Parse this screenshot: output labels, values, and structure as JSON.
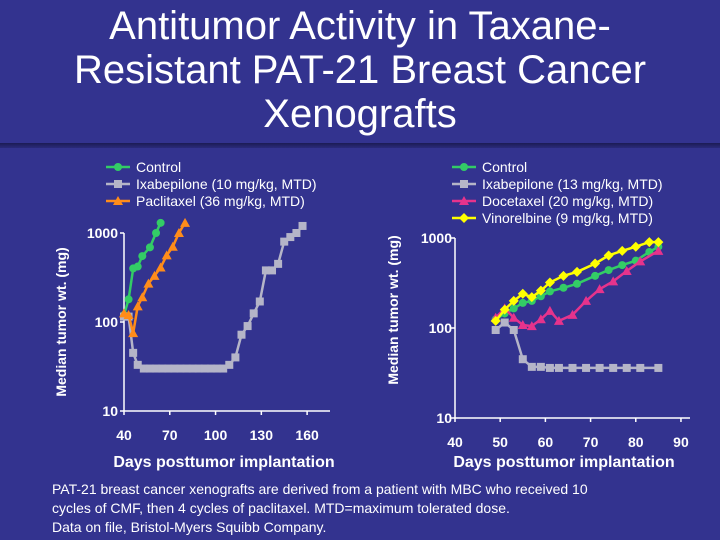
{
  "title": "Antitumor Activity in Taxane-Resistant PAT-21 Breast Cancer Xenografts",
  "title_lines": [
    "Antitumor Activity in Taxane-",
    "Resistant PAT-21 Breast Cancer",
    "Xenografts"
  ],
  "footnote": {
    "line1": "PAT-21 breast cancer xenografts are derived from a patient with MBC who received 10",
    "line2": "cycles of CMF, then 4 cycles of paclitaxel.  MTD=maximum tolerated dose.",
    "line3": "Data on file, Bristol-Myers Squibb Company."
  },
  "chart_data": [
    {
      "type": "line",
      "xlabel": "Days posttumor implantation",
      "ylabel": "Median tumor wt. (mg)",
      "yscale": "log",
      "xlim": [
        40,
        175
      ],
      "ylim": [
        10,
        1000
      ],
      "xticks": [
        40,
        70,
        100,
        130,
        160
      ],
      "xtick_labels": [
        "40",
        "70",
        "100",
        "130",
        "160"
      ],
      "yticks": [
        10,
        100,
        1000
      ],
      "ytick_labels": [
        "10",
        "100",
        "1000"
      ],
      "legend_position": "top",
      "series": [
        {
          "name": "Control",
          "color": "#33cc66",
          "marker": "circle",
          "x": [
            40,
            43,
            46,
            49,
            52,
            57,
            61,
            64
          ],
          "y": [
            120,
            180,
            400,
            420,
            550,
            690,
            1000,
            1300
          ]
        },
        {
          "name": "Ixabepilone (10 mg/kg, MTD)",
          "color": "#b5b5c8",
          "marker": "square",
          "x": [
            40,
            43,
            46,
            49,
            53,
            57,
            61,
            65,
            69,
            73,
            77,
            81,
            85,
            89,
            93,
            97,
            101,
            105,
            109,
            113,
            117,
            121,
            125,
            129,
            133,
            137,
            141,
            145,
            149,
            153,
            157
          ],
          "y": [
            115,
            115,
            45,
            33,
            30,
            30,
            30,
            30,
            30,
            30,
            30,
            30,
            30,
            30,
            30,
            30,
            30,
            30,
            33,
            40,
            72,
            90,
            125,
            170,
            380,
            380,
            450,
            800,
            900,
            1000,
            1200
          ]
        },
        {
          "name": "Paclitaxel (36 mg/kg, MTD)",
          "color": "#ff8c1a",
          "marker": "triangle",
          "x": [
            40,
            43,
            46,
            49,
            52,
            56,
            60,
            64,
            68,
            72,
            76,
            80
          ],
          "y": [
            125,
            120,
            75,
            150,
            190,
            270,
            330,
            410,
            560,
            700,
            1000,
            1300
          ]
        }
      ]
    },
    {
      "type": "line",
      "xlabel": "Days posttumor implantation",
      "ylabel": "Median tumor wt. (mg)",
      "yscale": "log",
      "xlim": [
        40,
        92
      ],
      "ylim": [
        10,
        1000
      ],
      "xticks": [
        40,
        50,
        60,
        70,
        80,
        90
      ],
      "xtick_labels": [
        "40",
        "50",
        "60",
        "70",
        "80",
        "90"
      ],
      "yticks": [
        10,
        100,
        1000
      ],
      "ytick_labels": [
        "10",
        "100",
        "1000"
      ],
      "legend_position": "top-right",
      "series": [
        {
          "name": "Control",
          "color": "#33cc66",
          "marker": "circle",
          "x": [
            49,
            51,
            53,
            55,
            57,
            59,
            61,
            64,
            67,
            71,
            74,
            77,
            80,
            83,
            85
          ],
          "y": [
            125,
            145,
            165,
            190,
            200,
            225,
            255,
            280,
            310,
            380,
            440,
            500,
            560,
            700,
            800
          ]
        },
        {
          "name": "Ixabepilone (13 mg/kg, MTD)",
          "color": "#b5b5c8",
          "marker": "square",
          "x": [
            49,
            51,
            53,
            55,
            57,
            59,
            61,
            63,
            66,
            69,
            72,
            75,
            78,
            81,
            85
          ],
          "y": [
            95,
            115,
            95,
            45,
            37,
            37,
            36,
            36,
            36,
            36,
            36,
            36,
            36,
            36,
            36
          ]
        },
        {
          "name": "Docetaxel (20 mg/kg, MTD)",
          "color": "#e6338c",
          "marker": "triangle",
          "x": [
            49,
            51,
            53,
            55,
            57,
            59,
            61,
            63,
            66,
            69,
            72,
            75,
            78,
            81,
            85
          ],
          "y": [
            130,
            165,
            130,
            108,
            105,
            125,
            155,
            120,
            140,
            200,
            270,
            330,
            430,
            550,
            720
          ]
        },
        {
          "name": "Vinorelbine (9 mg/kg, MTD)",
          "color": "#ffff00",
          "marker": "diamond",
          "x": [
            49,
            51,
            53,
            55,
            57,
            59,
            61,
            64,
            67,
            71,
            74,
            77,
            80,
            83,
            85
          ],
          "y": [
            120,
            160,
            200,
            240,
            220,
            260,
            320,
            380,
            420,
            520,
            640,
            720,
            800,
            900,
            900
          ]
        }
      ]
    }
  ]
}
